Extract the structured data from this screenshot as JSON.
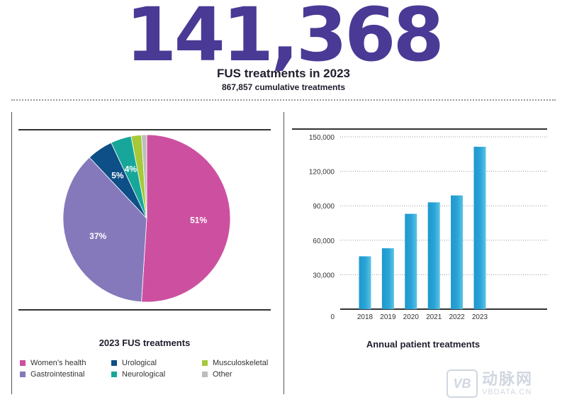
{
  "headline": {
    "big_number": "141,368",
    "title": "FUS treatments in 2023",
    "subtitle": "867,857 cumulative treatments"
  },
  "chart_data": [
    {
      "type": "pie",
      "title": "2023 FUS treatments",
      "slices": [
        {
          "label": "Women’s health",
          "value": 51,
          "value_label": "51%",
          "color": "#cd50a0"
        },
        {
          "label": "Gastrointestinal",
          "value": 37,
          "value_label": "37%",
          "color": "#8579bb"
        },
        {
          "label": "Urological",
          "value": 5,
          "value_label": "5%",
          "color": "#0d4f86"
        },
        {
          "label": "Neurological",
          "value": 4,
          "value_label": "4%",
          "color": "#17a79a"
        },
        {
          "label": "Musculoskeletal",
          "value": 2,
          "value_label": "",
          "color": "#a6c93a"
        },
        {
          "label": "Other",
          "value": 1,
          "value_label": "",
          "color": "#bdbdbd"
        }
      ],
      "legend_order": [
        "Women’s health",
        "Urological",
        "Musculoskeletal",
        "Gastrointestinal",
        "Neurological",
        "Other"
      ],
      "legend_placement": "bottom"
    },
    {
      "type": "bar",
      "title": "Annual patient treatments",
      "categories": [
        "2018",
        "2019",
        "2020",
        "2021",
        "2022",
        "2023"
      ],
      "values": [
        46000,
        53000,
        83000,
        93000,
        99000,
        141368
      ],
      "ylim": [
        0,
        150000
      ],
      "yticks": [
        0,
        30000,
        60000,
        90000,
        120000,
        150000
      ],
      "ytick_labels": [
        "0",
        "30,000",
        "60,000",
        "90,000",
        "120,000",
        "150,000"
      ],
      "grid": "horizontal dotted",
      "bar_color": "#2aa5d6"
    }
  ],
  "watermark": {
    "logo_text": "VB",
    "cn_text": "动脉网",
    "url": "VBDATA.CN"
  }
}
